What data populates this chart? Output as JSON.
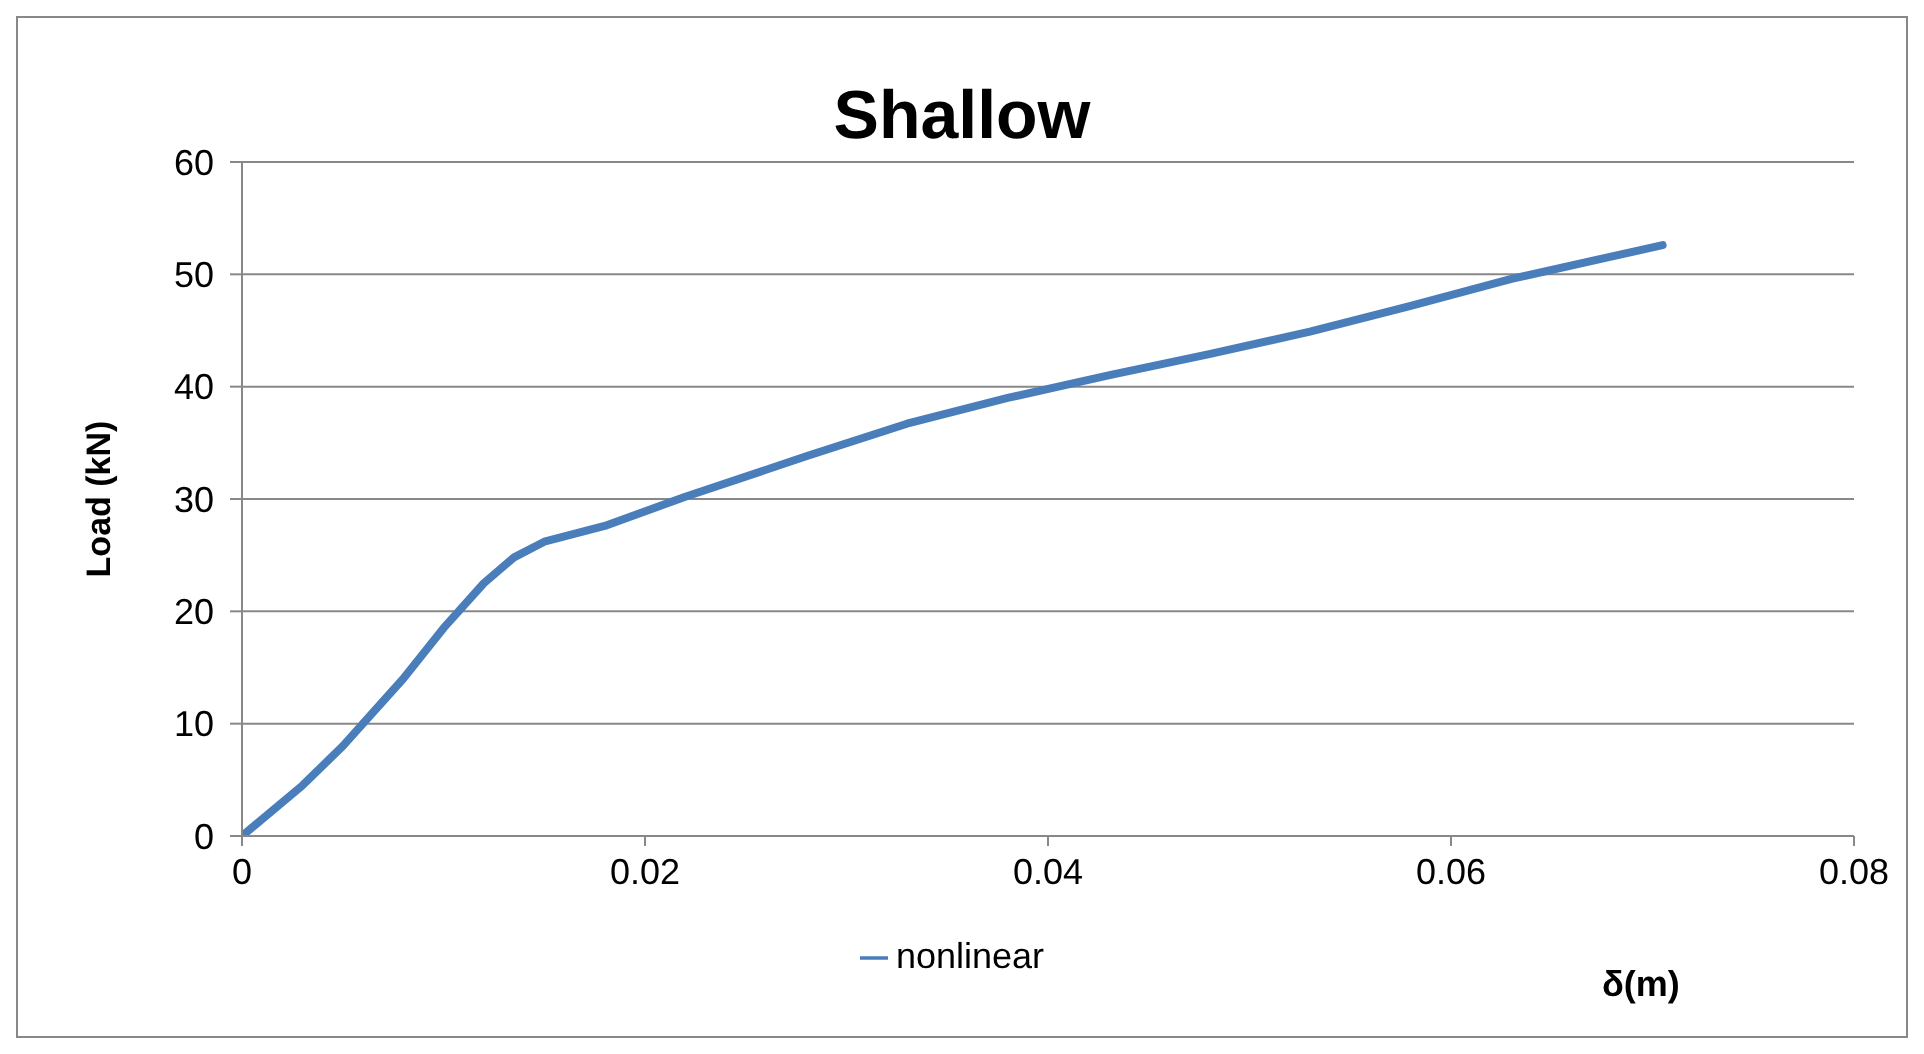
{
  "chart_data": {
    "type": "line",
    "title": "Shallow",
    "xlabel": "δ(m)",
    "ylabel": "Load (kN)",
    "x": [
      0,
      0.003,
      0.005,
      0.008,
      0.01,
      0.012,
      0.0135,
      0.015,
      0.018,
      0.022,
      0.028,
      0.033,
      0.038,
      0.043,
      0.048,
      0.053,
      0.058,
      0.063,
      0.068,
      0.0705
    ],
    "series": [
      {
        "name": "nonlinear",
        "color": "#4a7ebb",
        "values": [
          0,
          4.5,
          8,
          14,
          18.5,
          22.5,
          24.8,
          26.2,
          27.6,
          30.2,
          33.8,
          36.7,
          39,
          41,
          42.9,
          44.9,
          47.2,
          49.6,
          51.6,
          52.6
        ]
      }
    ],
    "xlim": [
      0,
      0.08
    ],
    "xticks": [
      0,
      0.02,
      0.04,
      0.06,
      0.08
    ],
    "ylim": [
      0,
      60
    ],
    "yticks": [
      0,
      10,
      20,
      30,
      40,
      50,
      60
    ],
    "grid": "y",
    "legend": "bottom",
    "marker": "none",
    "line_style": "solid"
  }
}
